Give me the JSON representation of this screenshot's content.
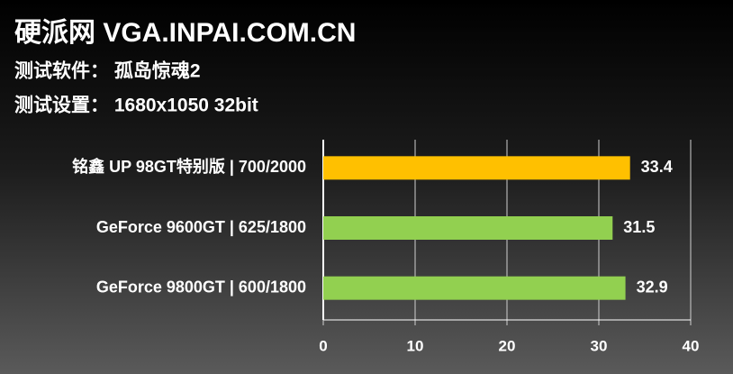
{
  "chart_data": {
    "type": "hbar",
    "title": "硬派网 VGA.INPAI.COM.CN",
    "subtitles": [
      "测试软件： 孤岛惊魂2",
      "测试设置： 1680x1050 32bit"
    ],
    "categories": [
      "铭鑫 UP 98GT特别版 | 700/2000",
      "GeForce 9600GT | 625/1800",
      "GeForce 9800GT | 600/1800"
    ],
    "values": [
      33.4,
      31.5,
      32.9
    ],
    "colors": [
      "#ffc000",
      "#92d050",
      "#92d050"
    ],
    "xlim": [
      0,
      40
    ],
    "xticks": [
      0,
      10,
      20,
      30,
      40
    ],
    "grid": true
  }
}
